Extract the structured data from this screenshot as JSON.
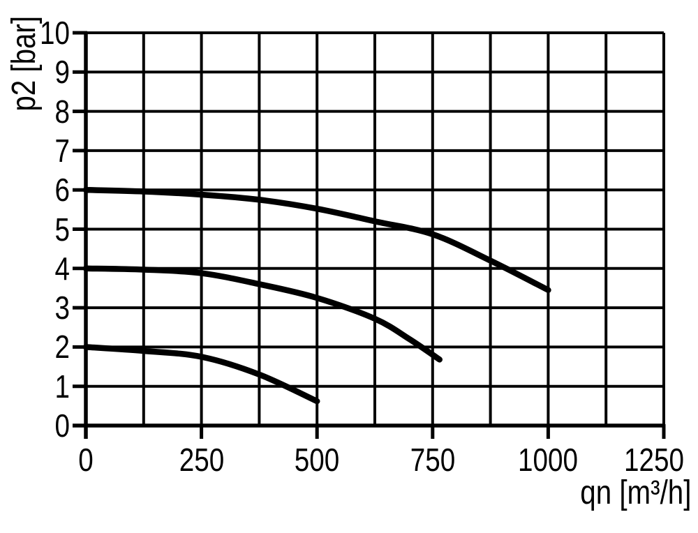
{
  "chart_data": {
    "type": "line",
    "title": "",
    "xlabel": "qn [m³/h]",
    "ylabel": "p2 [bar]",
    "xlim": [
      0,
      1250
    ],
    "ylim": [
      0,
      10
    ],
    "x_ticks": [
      0,
      250,
      500,
      750,
      1000,
      1250
    ],
    "x_tick_labels": [
      "0",
      "250",
      "500",
      "750",
      "1000",
      "1250"
    ],
    "y_ticks": [
      0,
      1,
      2,
      3,
      4,
      5,
      6,
      7,
      8,
      9,
      10
    ],
    "y_tick_labels": [
      "0",
      "1",
      "2",
      "3",
      "4",
      "5",
      "6",
      "7",
      "8",
      "9",
      "10"
    ],
    "x_grid_step": 125,
    "y_grid_step": 1,
    "grid": true,
    "legend": false,
    "colors": {
      "background": "#ffffff",
      "grid": "#000000",
      "axis": "#000000",
      "curve": "#000000"
    },
    "series": [
      {
        "name": "upper-curve-start-6-bar",
        "points": [
          [
            0,
            6.0
          ],
          [
            125,
            5.96
          ],
          [
            250,
            5.88
          ],
          [
            375,
            5.75
          ],
          [
            500,
            5.52
          ],
          [
            625,
            5.2
          ],
          [
            750,
            4.87
          ],
          [
            875,
            4.2
          ],
          [
            1000,
            3.45
          ]
        ]
      },
      {
        "name": "middle-curve-start-4-bar",
        "points": [
          [
            0,
            4.0
          ],
          [
            125,
            3.97
          ],
          [
            250,
            3.88
          ],
          [
            375,
            3.6
          ],
          [
            500,
            3.25
          ],
          [
            625,
            2.72
          ],
          [
            700,
            2.2
          ],
          [
            765,
            1.68
          ]
        ]
      },
      {
        "name": "lower-curve-start-2-bar",
        "points": [
          [
            0,
            2.0
          ],
          [
            125,
            1.9
          ],
          [
            250,
            1.75
          ],
          [
            375,
            1.3
          ],
          [
            500,
            0.62
          ]
        ]
      }
    ]
  }
}
